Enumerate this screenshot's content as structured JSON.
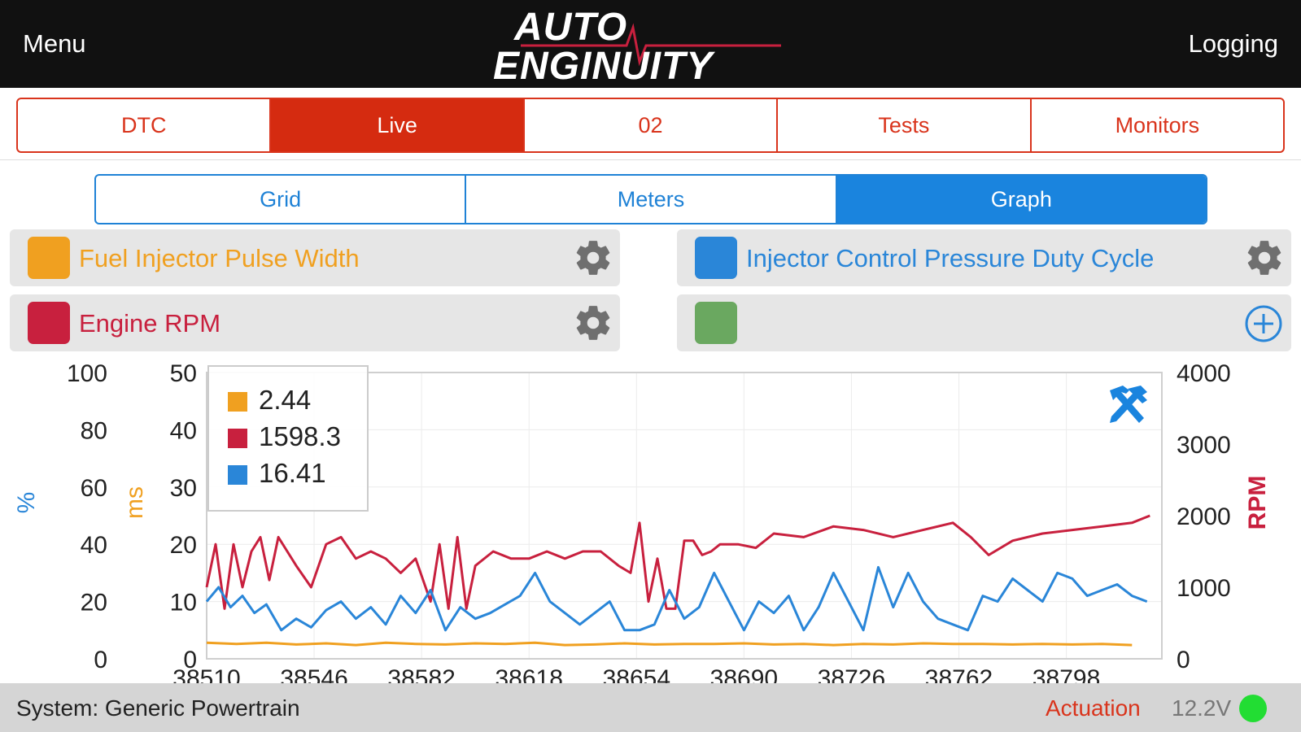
{
  "header": {
    "menu_label": "Menu",
    "logging_label": "Logging",
    "logo_line1": "AUTO",
    "logo_line2": "ENGINUITY"
  },
  "main_tabs": [
    {
      "label": "DTC",
      "active": false
    },
    {
      "label": "Live",
      "active": true
    },
    {
      "label": "02",
      "active": false
    },
    {
      "label": "Tests",
      "active": false
    },
    {
      "label": "Monitors",
      "active": false
    }
  ],
  "sub_tabs": [
    {
      "label": "Grid",
      "active": false
    },
    {
      "label": "Meters",
      "active": false
    },
    {
      "label": "Graph",
      "active": true
    }
  ],
  "pids": [
    {
      "label": "Fuel Injector Pulse Width",
      "color": "#f0a020",
      "action": "gear-icon"
    },
    {
      "label": "Injector Control Pressure Duty Cycle",
      "color": "#2a86d8",
      "action": "gear-icon"
    },
    {
      "label": "Engine RPM",
      "color": "#c8203e",
      "action": "gear-icon"
    },
    {
      "label": "",
      "color": "#6aa860",
      "action": "plus-circle-icon"
    }
  ],
  "chart_data": {
    "type": "line",
    "x_ticks": [
      38510,
      38546,
      38582,
      38618,
      38654,
      38690,
      38726,
      38762,
      38798
    ],
    "xlim": [
      38510,
      38830
    ],
    "axes": {
      "percent": {
        "label": "%",
        "ticks": [
          "100",
          "80",
          "60",
          "40",
          "20",
          "0"
        ],
        "ylim": [
          0,
          100
        ],
        "color": "#2a86d8"
      },
      "ms": {
        "label": "ms",
        "ticks": [
          "50",
          "40",
          "30",
          "20",
          "10",
          "0"
        ],
        "ylim": [
          0,
          50
        ],
        "color": "#f0a020"
      },
      "rpm": {
        "label": "RPM",
        "ticks": [
          "4000",
          "3000",
          "2000",
          "1000",
          "0"
        ],
        "ylim": [
          0,
          4000
        ],
        "color": "#c8203e"
      }
    },
    "legend": {
      "placement": "top-left",
      "values": [
        "2.44",
        "1598.3",
        "16.41"
      ]
    },
    "series": [
      {
        "axis": "ms",
        "color": "#f0a020",
        "x": [
          38510,
          38520,
          38530,
          38540,
          38550,
          38560,
          38570,
          38580,
          38590,
          38600,
          38610,
          38620,
          38630,
          38640,
          38650,
          38660,
          38670,
          38680,
          38690,
          38700,
          38710,
          38720,
          38730,
          38740,
          38750,
          38760,
          38770,
          38780,
          38790,
          38800,
          38810,
          38820
        ],
        "values": [
          2.8,
          2.6,
          2.8,
          2.5,
          2.7,
          2.4,
          2.8,
          2.6,
          2.5,
          2.7,
          2.6,
          2.8,
          2.4,
          2.5,
          2.7,
          2.5,
          2.6,
          2.6,
          2.7,
          2.5,
          2.6,
          2.4,
          2.6,
          2.5,
          2.7,
          2.6,
          2.6,
          2.5,
          2.6,
          2.5,
          2.6,
          2.4
        ]
      },
      {
        "axis": "rpm",
        "color": "#c8203e",
        "x": [
          38510,
          38513,
          38516,
          38519,
          38522,
          38525,
          38528,
          38531,
          38534,
          38537,
          38540,
          38545,
          38550,
          38555,
          38560,
          38565,
          38570,
          38575,
          38580,
          38585,
          38588,
          38591,
          38594,
          38597,
          38600,
          38606,
          38612,
          38618,
          38624,
          38630,
          38636,
          38642,
          38648,
          38652,
          38655,
          38658,
          38661,
          38664,
          38667,
          38670,
          38673,
          38676,
          38679,
          38682,
          38688,
          38694,
          38700,
          38710,
          38720,
          38730,
          38740,
          38750,
          38760,
          38766,
          38772,
          38780,
          38790,
          38800,
          38810,
          38820,
          38826
        ],
        "values": [
          1000,
          1600,
          700,
          1600,
          1000,
          1500,
          1700,
          1100,
          1700,
          1500,
          1300,
          1000,
          1600,
          1700,
          1400,
          1500,
          1400,
          1200,
          1400,
          800,
          1600,
          700,
          1700,
          700,
          1300,
          1500,
          1400,
          1400,
          1500,
          1400,
          1500,
          1500,
          1300,
          1200,
          1900,
          800,
          1400,
          700,
          700,
          1650,
          1650,
          1450,
          1500,
          1600,
          1600,
          1550,
          1750,
          1700,
          1850,
          1800,
          1700,
          1800,
          1900,
          1700,
          1450,
          1650,
          1750,
          1800,
          1850,
          1900,
          2000
        ]
      },
      {
        "axis": "percent",
        "color": "#2a86d8",
        "x": [
          38510,
          38514,
          38518,
          38522,
          38526,
          38530,
          38535,
          38540,
          38545,
          38550,
          38555,
          38560,
          38565,
          38570,
          38575,
          38580,
          38585,
          38590,
          38595,
          38600,
          38605,
          38610,
          38615,
          38620,
          38625,
          38630,
          38635,
          38640,
          38645,
          38650,
          38655,
          38660,
          38665,
          38670,
          38675,
          38680,
          38685,
          38690,
          38695,
          38700,
          38705,
          38710,
          38715,
          38720,
          38725,
          38730,
          38735,
          38740,
          38745,
          38750,
          38755,
          38760,
          38765,
          38770,
          38775,
          38780,
          38785,
          38790,
          38795,
          38800,
          38805,
          38810,
          38815,
          38820,
          38825
        ],
        "values": [
          20,
          25,
          18,
          22,
          16,
          19,
          10,
          14,
          11,
          17,
          20,
          14,
          18,
          12,
          22,
          16,
          24,
          10,
          18,
          14,
          16,
          19,
          22,
          30,
          20,
          16,
          12,
          16,
          20,
          10,
          10,
          12,
          24,
          14,
          18,
          30,
          20,
          10,
          20,
          16,
          22,
          10,
          18,
          30,
          20,
          10,
          32,
          18,
          30,
          20,
          14,
          12,
          10,
          22,
          20,
          28,
          24,
          20,
          30,
          28,
          22,
          24,
          26,
          22,
          20
        ]
      }
    ]
  },
  "status": {
    "system_text": "System: Generic Powertrain",
    "actuation_label": "Actuation",
    "voltage": "12.2V",
    "indicator_color": "#22dd33"
  }
}
